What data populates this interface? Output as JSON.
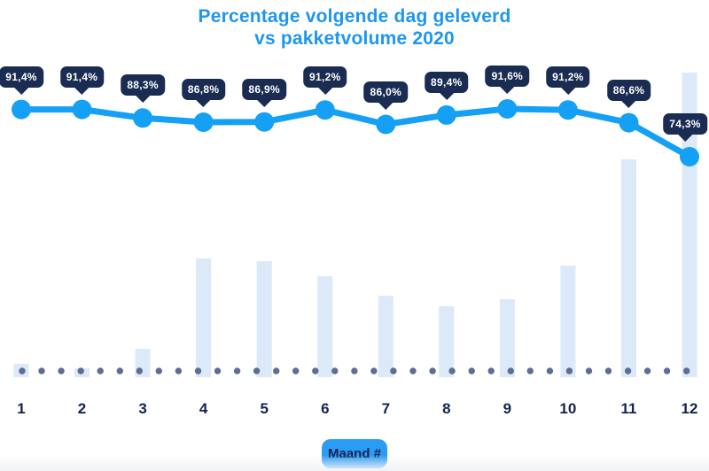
{
  "title": {
    "line1": "Percentage volgende dag geleverd",
    "line2": "vs pakketvolume 2020"
  },
  "x_axis": {
    "label": "Maand #",
    "months": [
      "1",
      "2",
      "3",
      "4",
      "5",
      "6",
      "7",
      "8",
      "9",
      "10",
      "11",
      "12"
    ]
  },
  "chart_data": {
    "type": "line+bar",
    "title": "Percentage volgende dag geleverd vs pakketvolume 2020",
    "xlabel": "Maand #",
    "ylabel": "",
    "categories": [
      "1",
      "2",
      "3",
      "4",
      "5",
      "6",
      "7",
      "8",
      "9",
      "10",
      "11",
      "12"
    ],
    "series": [
      {
        "name": "percentage-volgende-dag-geleverd",
        "type": "line",
        "values": [
          91.4,
          91.4,
          88.3,
          86.8,
          86.9,
          91.2,
          86.0,
          89.4,
          91.6,
          91.2,
          86.6,
          74.3
        ],
        "labels": [
          "91,4%",
          "91,4%",
          "88,3%",
          "86,8%",
          "86,9%",
          "91,2%",
          "86,0%",
          "89,4%",
          "91,6%",
          "91,2%",
          "86,6%",
          "74,3%"
        ]
      },
      {
        "name": "pakketvolume",
        "type": "bar",
        "values_relative_pct_of_max": [
          4.4,
          2.9,
          9.3,
          39.0,
          38.1,
          33.1,
          26.7,
          23.3,
          25.6,
          36.6,
          71.5,
          100.0
        ],
        "note": "volume axis unlabeled; values estimated relative to tallest bar (month 12)"
      }
    ],
    "legend_position": "none",
    "grid": "none; dotted horizontal baseline only",
    "value_axis_visible": false
  },
  "colors": {
    "title_blue": "#1e96f0",
    "line_blue": "#14a0f4",
    "badge_navy": "#1a2c52",
    "badge_text": "#ffffff",
    "bar_fill": "#dbe9f8",
    "dot_slate": "#5c6f93",
    "month_text_navy": "#132450",
    "xlabel_pill_bg": "#2b9cf4"
  }
}
